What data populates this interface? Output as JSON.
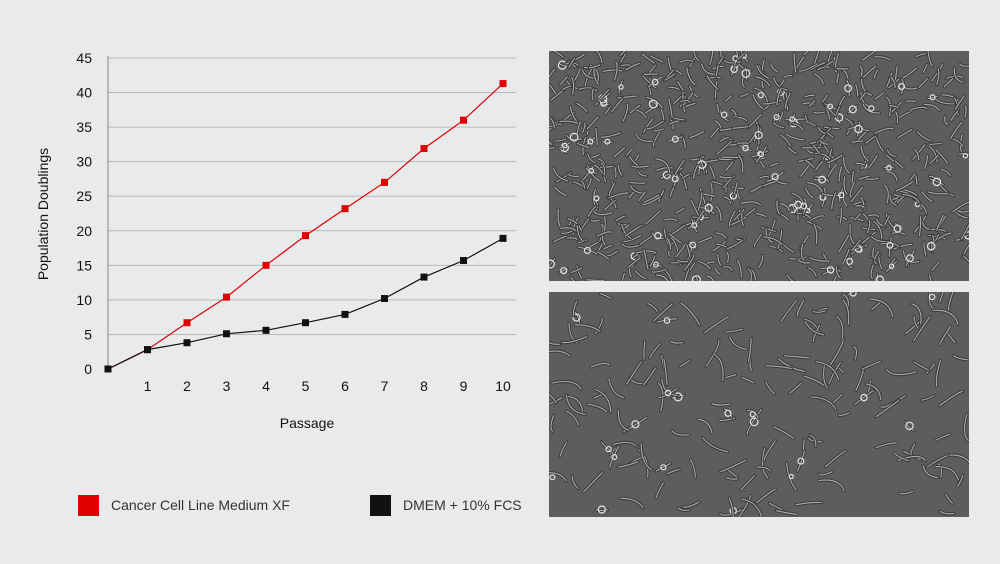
{
  "chart_data": {
    "type": "line",
    "title": "",
    "xlabel": "Passage",
    "ylabel": "Population Doublings",
    "xlim": [
      0,
      10
    ],
    "ylim": [
      0,
      45
    ],
    "x_ticks": [
      1,
      2,
      3,
      4,
      5,
      6,
      7,
      8,
      9,
      10
    ],
    "y_ticks": [
      0,
      5,
      10,
      15,
      20,
      25,
      30,
      35,
      40,
      45
    ],
    "grid": "horizontal",
    "legend_position": "bottom",
    "series": [
      {
        "name": "Cancer Cell Line Medium XF",
        "color": "#e00000",
        "x": [
          0,
          1,
          2,
          3,
          4,
          5,
          6,
          7,
          8,
          9,
          10
        ],
        "y": [
          0,
          2.8,
          6.7,
          10.4,
          15,
          19.3,
          23.2,
          27,
          31.9,
          36,
          41.3
        ]
      },
      {
        "name": "DMEM + 10% FCS",
        "color": "#111111",
        "x": [
          0,
          1,
          2,
          3,
          4,
          5,
          6,
          7,
          8,
          9,
          10
        ],
        "y": [
          0,
          2.8,
          3.8,
          5.1,
          5.6,
          6.7,
          7.9,
          10.2,
          13.3,
          15.7,
          18.9
        ]
      }
    ]
  },
  "images": {
    "top": "cells-dense-micrograph",
    "bottom": "cells-sparse-micrograph"
  }
}
